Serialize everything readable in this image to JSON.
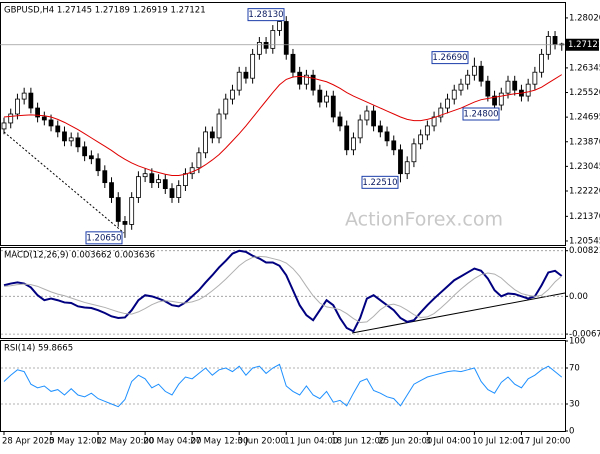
{
  "chart_data": [
    {
      "type": "candlestick",
      "title": "GBPUSD,H4  1.27145 1.27189 1.26919 1.27121",
      "watermark": "ActionForex.com",
      "categories": [
        "28 Apr 2020",
        null,
        null,
        null,
        null,
        null,
        null,
        "5 May 12:00",
        null,
        null,
        null,
        null,
        null,
        null,
        "12 May 20:00",
        null,
        null,
        null,
        null,
        null,
        null,
        "20 May 04:00",
        null,
        null,
        null,
        null,
        null,
        null,
        "27 May 12:00",
        null,
        null,
        null,
        null,
        null,
        null,
        "3 Jun 20:00",
        null,
        null,
        null,
        null,
        null,
        null,
        "11 Jun 04:00",
        null,
        null,
        null,
        null,
        null,
        null,
        "18 Jun 12:00",
        null,
        null,
        null,
        null,
        null,
        null,
        "25 Jun 20:00",
        null,
        null,
        null,
        null,
        null,
        null,
        "3 Jul 04:00",
        null,
        null,
        null,
        null,
        null,
        null,
        "10 Jul 12:00",
        null,
        null,
        null,
        null,
        null,
        null,
        "17 Jul 20:00",
        null,
        null,
        null,
        null,
        null,
        null
      ],
      "open": [
        1.243,
        1.245,
        1.248,
        1.253,
        1.255,
        1.25,
        1.247,
        1.246,
        1.244,
        1.242,
        1.239,
        1.24,
        1.237,
        1.234,
        1.233,
        1.229,
        1.225,
        1.22,
        1.212,
        1.211,
        1.22,
        1.227,
        1.228,
        1.225,
        1.226,
        1.223,
        1.22,
        1.224,
        1.228,
        1.23,
        1.235,
        1.242,
        1.24,
        1.248,
        1.253,
        1.256,
        1.262,
        1.26,
        1.268,
        1.272,
        1.27,
        1.276,
        1.279,
        1.268,
        1.262,
        1.258,
        1.261,
        1.256,
        1.252,
        1.254,
        1.247,
        1.244,
        1.236,
        1.24,
        1.246,
        1.249,
        1.244,
        1.242,
        1.239,
        1.236,
        1.228,
        1.232,
        1.238,
        1.241,
        1.244,
        1.247,
        1.25,
        1.253,
        1.256,
        1.258,
        1.261,
        1.264,
        1.259,
        1.254,
        1.251,
        1.255,
        1.259,
        1.256,
        1.254,
        1.258,
        1.262,
        1.268,
        1.274,
        1.27145
      ],
      "high": [
        1.2468,
        1.2498,
        1.2548,
        1.2568,
        1.2568,
        1.2518,
        1.2488,
        1.2478,
        1.2458,
        1.2438,
        1.2418,
        1.2418,
        1.2388,
        1.2358,
        1.2348,
        1.2308,
        1.2268,
        1.2218,
        1.2138,
        1.2218,
        1.2288,
        1.2298,
        1.2298,
        1.2278,
        1.2278,
        1.2248,
        1.2258,
        1.2298,
        1.2318,
        1.2368,
        1.2438,
        1.2438,
        1.2498,
        1.2548,
        1.2578,
        1.2638,
        1.2638,
        1.2698,
        1.2738,
        1.2738,
        1.2778,
        1.2813,
        1.2808,
        1.2698,
        1.2638,
        1.2628,
        1.2628,
        1.2578,
        1.2558,
        1.2558,
        1.2488,
        1.2458,
        1.2418,
        1.2478,
        1.2508,
        1.2508,
        1.2458,
        1.2438,
        1.2408,
        1.2378,
        1.2338,
        1.2398,
        1.2428,
        1.2458,
        1.2488,
        1.2518,
        1.2548,
        1.2578,
        1.2598,
        1.2628,
        1.2669,
        1.2658,
        1.2608,
        1.2558,
        1.2568,
        1.2608,
        1.2608,
        1.2578,
        1.2598,
        1.2638,
        1.2698,
        1.2758,
        1.2758,
        1.27189
      ],
      "low": [
        1.2412,
        1.2432,
        1.2462,
        1.2512,
        1.2482,
        1.2452,
        1.2442,
        1.2422,
        1.2402,
        1.2372,
        1.2372,
        1.2352,
        1.2322,
        1.2312,
        1.2272,
        1.2232,
        1.2182,
        1.2102,
        1.2065,
        1.2092,
        1.2182,
        1.2252,
        1.2232,
        1.2232,
        1.2212,
        1.2182,
        1.2182,
        1.2222,
        1.2262,
        1.2282,
        1.2332,
        1.2382,
        1.2382,
        1.2462,
        1.2512,
        1.2542,
        1.2582,
        1.2582,
        1.2662,
        1.2682,
        1.2682,
        1.2742,
        1.2662,
        1.2602,
        1.2562,
        1.2562,
        1.2542,
        1.2502,
        1.2502,
        1.2452,
        1.2422,
        1.2342,
        1.2342,
        1.2382,
        1.2442,
        1.2422,
        1.2402,
        1.2372,
        1.2342,
        1.2251,
        1.2262,
        1.2302,
        1.2362,
        1.2392,
        1.2422,
        1.2452,
        1.2482,
        1.2512,
        1.2542,
        1.2562,
        1.2592,
        1.2572,
        1.2522,
        1.248,
        1.2492,
        1.2532,
        1.2542,
        1.2522,
        1.2522,
        1.2562,
        1.2602,
        1.2662,
        1.26965,
        1.26919
      ],
      "close": [
        1.245,
        1.248,
        1.253,
        1.255,
        1.25,
        1.247,
        1.246,
        1.244,
        1.242,
        1.239,
        1.24,
        1.237,
        1.234,
        1.233,
        1.229,
        1.225,
        1.22,
        1.212,
        1.211,
        1.22,
        1.227,
        1.228,
        1.225,
        1.226,
        1.223,
        1.22,
        1.224,
        1.228,
        1.23,
        1.235,
        1.242,
        1.24,
        1.248,
        1.253,
        1.256,
        1.262,
        1.26,
        1.268,
        1.272,
        1.27,
        1.276,
        1.279,
        1.268,
        1.262,
        1.258,
        1.261,
        1.256,
        1.252,
        1.254,
        1.247,
        1.244,
        1.236,
        1.24,
        1.246,
        1.249,
        1.244,
        1.242,
        1.239,
        1.236,
        1.228,
        1.232,
        1.238,
        1.241,
        1.244,
        1.247,
        1.25,
        1.253,
        1.256,
        1.258,
        1.261,
        1.264,
        1.259,
        1.254,
        1.251,
        1.255,
        1.259,
        1.256,
        1.254,
        1.258,
        1.262,
        1.268,
        1.274,
        1.27145,
        1.27121
      ],
      "color": "#000000",
      "ma": {
        "color": "#e00000",
        "values": [
          1.247,
          1.2472,
          1.2474,
          1.2476,
          1.2477,
          1.2476,
          1.2474,
          1.247,
          1.2462,
          1.2452,
          1.244,
          1.2428,
          1.2414,
          1.24,
          1.2386,
          1.2372,
          1.2358,
          1.2342,
          1.2328,
          1.2316,
          1.2306,
          1.2298,
          1.229,
          1.2284,
          1.2278,
          1.2274,
          1.2274,
          1.2278,
          1.2286,
          1.2296,
          1.231,
          1.2326,
          1.2344,
          1.2366,
          1.239,
          1.2414,
          1.244,
          1.2468,
          1.2496,
          1.2524,
          1.2552,
          1.2578,
          1.2596,
          1.2604,
          1.2606,
          1.2604,
          1.26,
          1.2594,
          1.2588,
          1.2578,
          1.2566,
          1.2552,
          1.254,
          1.253,
          1.252,
          1.251,
          1.25,
          1.249,
          1.248,
          1.247,
          1.2462,
          1.2458,
          1.2458,
          1.2462,
          1.2468,
          1.2476,
          1.2484,
          1.2492,
          1.25,
          1.251,
          1.252,
          1.2528,
          1.2532,
          1.2536,
          1.254,
          1.2544,
          1.2548,
          1.255,
          1.2554,
          1.256,
          1.257,
          1.2584,
          1.2598,
          1.2612
        ]
      },
      "last_price": {
        "value": 1.27121,
        "label": "1.27121"
      },
      "annotations": [
        {
          "value": 1.2813,
          "label": "1.28130"
        },
        {
          "value": 1.2669,
          "label": "1.26690"
        },
        {
          "value": 1.248,
          "label": "1.24800"
        },
        {
          "value": 1.2251,
          "label": "1.22510"
        },
        {
          "value": 1.2065,
          "label": "1.20650"
        }
      ],
      "ylim": [
        1.2041,
        1.2852
      ],
      "yticks": [
        {
          "value": 1.2802,
          "label": "1.28020"
        },
        {
          "value": 1.26345,
          "label": "1.26345"
        },
        {
          "value": 1.2552,
          "label": "1.25520"
        },
        {
          "value": 1.24695,
          "label": "1.24695"
        },
        {
          "value": 1.2387,
          "label": "1.23870"
        },
        {
          "value": 1.23045,
          "label": "1.23045"
        },
        {
          "value": 1.2222,
          "label": "1.22220"
        },
        {
          "value": 1.2137,
          "label": "1.21370"
        },
        {
          "value": 1.20545,
          "label": "1.20545"
        }
      ],
      "grid": false
    },
    {
      "type": "line",
      "title": "MACD(12,26,9) 0.003662 0.003636",
      "series": [
        {
          "color": "#000080",
          "values": [
            0.002,
            0.0023,
            0.0025,
            0.0023,
            0.0016,
            0.0002,
            -0.0007,
            -0.0004,
            -0.0007,
            -0.0011,
            -0.0012,
            -0.0018,
            -0.002,
            -0.0021,
            -0.0025,
            -0.003,
            -0.0036,
            -0.0039,
            -0.0038,
            -0.0025,
            -0.0007,
            0.0002,
            0.0,
            -0.0004,
            -0.0009,
            -0.0016,
            -0.0018,
            -0.0011,
            0.0,
            0.0011,
            0.0025,
            0.0038,
            0.0052,
            0.0064,
            0.0077,
            0.0082,
            0.008,
            0.0073,
            0.0068,
            0.0061,
            0.0061,
            0.0055,
            0.0038,
            0.0011,
            -0.0016,
            -0.0034,
            -0.0043,
            -0.0025,
            -0.0007,
            -0.0016,
            -0.0039,
            -0.0057,
            -0.0063,
            -0.0039,
            -0.0004,
            0.0002,
            -0.0007,
            -0.0016,
            -0.0025,
            -0.0039,
            -0.0046,
            -0.0043,
            -0.0029,
            -0.0016,
            -0.0004,
            0.0007,
            0.0018,
            0.0029,
            0.0036,
            0.0043,
            0.005,
            0.0046,
            0.0032,
            0.0011,
            0.0,
            0.0005,
            0.0004,
            0.0,
            -0.0004,
            0.0,
            0.002,
            0.0043,
            0.0046,
            0.003662
          ]
        },
        {
          "color": "#b0b0b0",
          "values": [
            0.0018,
            0.0019,
            0.0021,
            0.0022,
            0.0021,
            0.0018,
            0.0013,
            0.0008,
            0.0004,
            0.0001,
            -0.0003,
            -0.0007,
            -0.0011,
            -0.0014,
            -0.0017,
            -0.002,
            -0.0024,
            -0.0028,
            -0.0031,
            -0.0032,
            -0.0028,
            -0.0022,
            -0.0015,
            -0.001,
            -0.0008,
            -0.0009,
            -0.0011,
            -0.0012,
            -0.001,
            -0.0006,
            0.0001,
            0.001,
            0.002,
            0.0031,
            0.0043,
            0.0055,
            0.0064,
            0.007,
            0.0072,
            0.0071,
            0.0068,
            0.0065,
            0.006,
            0.005,
            0.0036,
            0.0018,
            0.0001,
            -0.0012,
            -0.0019,
            -0.0021,
            -0.0024,
            -0.0031,
            -0.004,
            -0.0047,
            -0.0046,
            -0.0036,
            -0.0024,
            -0.0016,
            -0.0014,
            -0.0018,
            -0.0025,
            -0.0033,
            -0.0038,
            -0.0037,
            -0.0031,
            -0.0021,
            -0.001,
            0.0002,
            0.0013,
            0.0023,
            0.0032,
            0.0039,
            0.0042,
            0.004,
            0.0033,
            0.0022,
            0.0012,
            0.0005,
            0.0002,
            0.0,
            0.0002,
            0.0012,
            0.0026,
            0.003636
          ]
        }
      ],
      "ylim": [
        -0.0075,
        0.0087
      ],
      "yticks": [
        0.008213,
        {
          "value": 0,
          "label": "0.00"
        },
        -0.006796
      ],
      "grid": true
    },
    {
      "type": "line",
      "title": "RSI(14) 59.8665",
      "series": [
        {
          "color": "#1e90ff",
          "values": [
            55,
            62,
            68,
            66,
            52,
            48,
            50,
            44,
            46,
            40,
            47,
            40,
            38,
            42,
            36,
            33,
            30,
            27,
            35,
            55,
            62,
            58,
            48,
            52,
            44,
            40,
            52,
            60,
            58,
            64,
            70,
            62,
            68,
            70,
            66,
            72,
            62,
            70,
            72,
            64,
            70,
            74,
            50,
            44,
            40,
            50,
            40,
            36,
            44,
            32,
            34,
            28,
            42,
            55,
            58,
            45,
            42,
            38,
            36,
            28,
            40,
            52,
            56,
            60,
            62,
            64,
            66,
            67,
            66,
            68,
            70,
            55,
            46,
            42,
            54,
            60,
            52,
            48,
            58,
            62,
            68,
            72,
            66,
            59.8665
          ]
        }
      ],
      "ylim": [
        0,
        100
      ],
      "yticks": [
        100,
        70,
        30,
        0
      ],
      "grid": true
    }
  ]
}
